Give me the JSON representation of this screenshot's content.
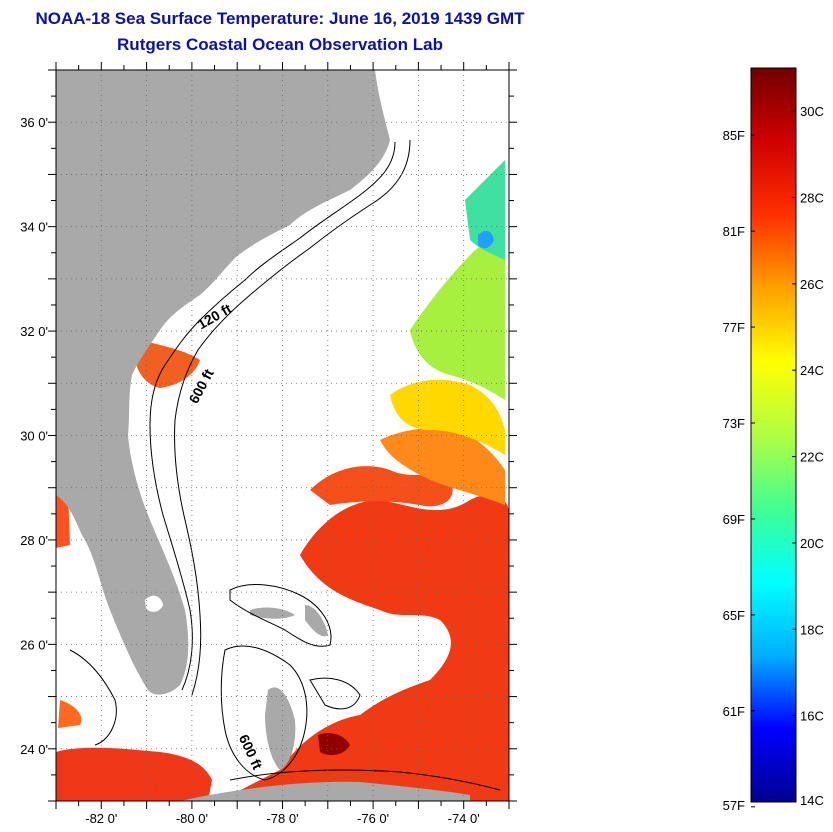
{
  "header": {
    "title": "NOAA-18 Sea Surface Temperature:  June 16, 2019 1439 GMT",
    "subtitle": "Rutgers Coastal Ocean Observation Lab"
  },
  "map": {
    "lon_range": [
      -83,
      -73
    ],
    "lat_range": [
      23,
      37
    ],
    "lat_ticks": [
      {
        "value": 36,
        "label": "36 0'"
      },
      {
        "value": 34,
        "label": "34 0'"
      },
      {
        "value": 32,
        "label": "32 0'"
      },
      {
        "value": 30,
        "label": "30 0'"
      },
      {
        "value": 28,
        "label": "28 0'"
      },
      {
        "value": 26,
        "label": "26 0'"
      },
      {
        "value": 24,
        "label": "24 0'"
      }
    ],
    "lon_ticks": [
      {
        "value": -82,
        "label": "-82 0'"
      },
      {
        "value": -80,
        "label": "-80 0'"
      },
      {
        "value": -78,
        "label": "-78 0'"
      },
      {
        "value": -76,
        "label": "-76 0'"
      },
      {
        "value": -74,
        "label": "-74 0'"
      }
    ],
    "contour_labels": [
      {
        "text": "120 ft",
        "lon": -79.45,
        "lat": 32.2,
        "angle": -30
      },
      {
        "text": "600 ft",
        "lon": -79.7,
        "lat": 30.9,
        "angle": -62
      },
      {
        "text": "600 ft",
        "lon": -78.8,
        "lat": 23.9,
        "angle": 65
      }
    ],
    "colors": {
      "land": "#a9a9a9",
      "ocean_nodata": "#ffffff",
      "grid": "#666666",
      "contour": "#000000"
    }
  },
  "colorbar": {
    "range_c": [
      14,
      31
    ],
    "celsius_ticks": [
      {
        "value": 30,
        "label": "30C"
      },
      {
        "value": 28,
        "label": "28C"
      },
      {
        "value": 26,
        "label": "26C"
      },
      {
        "value": 24,
        "label": "24C"
      },
      {
        "value": 22,
        "label": "22C"
      },
      {
        "value": 20,
        "label": "20C"
      },
      {
        "value": 18,
        "label": "18C"
      },
      {
        "value": 16,
        "label": "16C"
      },
      {
        "value": 14,
        "label": "14C"
      }
    ],
    "fahrenheit_ticks": [
      {
        "value": 85,
        "label": "85F"
      },
      {
        "value": 81,
        "label": "81F"
      },
      {
        "value": 77,
        "label": "77F"
      },
      {
        "value": 73,
        "label": "73F"
      },
      {
        "value": 69,
        "label": "69F"
      },
      {
        "value": 65,
        "label": "65F"
      },
      {
        "value": 61,
        "label": "61F"
      },
      {
        "value": 57,
        "label": "57F"
      }
    ],
    "colormap": [
      "#00008f",
      "#0000ff",
      "#00b0ff",
      "#00ffff",
      "#40ff90",
      "#b0ff40",
      "#ffff00",
      "#ffa000",
      "#ff3000",
      "#d00000",
      "#700000"
    ]
  }
}
